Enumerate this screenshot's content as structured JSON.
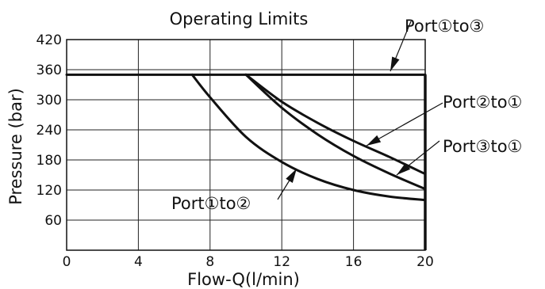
{
  "chart_data": {
    "type": "line",
    "title": "Operating Limits",
    "xlabel": "Flow-Q(l/min)",
    "ylabel": "Pressure (bar)",
    "xlim": [
      0,
      20
    ],
    "ylim": [
      0,
      420
    ],
    "xticks": [
      0,
      4,
      8,
      12,
      16,
      20
    ],
    "yticks": [
      60,
      120,
      180,
      240,
      300,
      360,
      420
    ],
    "grid": true,
    "series": [
      {
        "name": "Port①to③",
        "x": [
          0,
          20
        ],
        "y": [
          350,
          350
        ]
      },
      {
        "name": "Port②to①",
        "x": [
          10,
          12,
          14,
          16,
          18,
          20
        ],
        "y": [
          350,
          296,
          254,
          218,
          186,
          152
        ]
      },
      {
        "name": "Port③to①",
        "x": [
          10,
          12,
          14,
          16,
          18,
          20
        ],
        "y": [
          350,
          284,
          231,
          188,
          153,
          122
        ]
      },
      {
        "name": "Port①to②",
        "x": [
          7,
          8,
          10,
          12,
          14,
          16,
          18,
          20
        ],
        "y": [
          350,
          305,
          226,
          176,
          142,
          120,
          107,
          100
        ]
      }
    ]
  }
}
